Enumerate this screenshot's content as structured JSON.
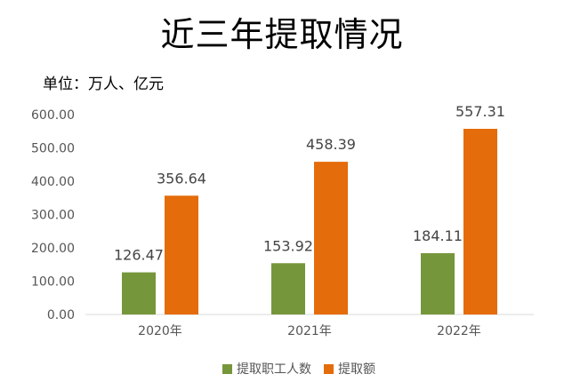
{
  "chart_data": {
    "type": "bar",
    "title": "近三年提取情况",
    "unit_label": "单位：万人、亿元",
    "categories": [
      "2020年",
      "2021年",
      "2022年"
    ],
    "series": [
      {
        "name": "提取职工人数",
        "values": [
          126.47,
          153.92,
          184.11
        ],
        "color": "#76963b"
      },
      {
        "name": "提取额",
        "values": [
          356.64,
          458.39,
          557.31
        ],
        "color": "#e46c0a"
      }
    ],
    "y_ticks": [
      "0.00",
      "100.00",
      "200.00",
      "300.00",
      "400.00",
      "500.00",
      "600.00"
    ],
    "data_labels": [
      [
        "126.47",
        "153.92",
        "184.11"
      ],
      [
        "356.64",
        "458.39",
        "557.31"
      ]
    ],
    "ylim": [
      0,
      600
    ],
    "grid": false,
    "legend": "bottom"
  }
}
